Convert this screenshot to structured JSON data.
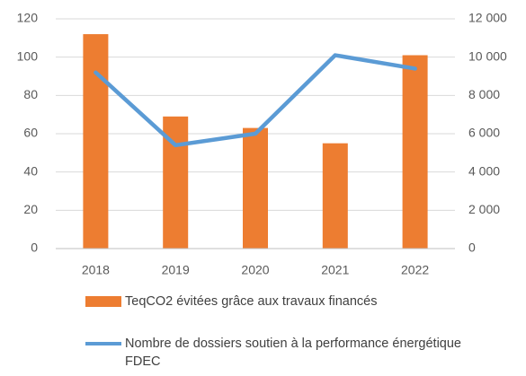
{
  "chart_data": {
    "type": "bar-line",
    "categories": [
      "2018",
      "2019",
      "2020",
      "2021",
      "2022"
    ],
    "series": [
      {
        "name": "TeqCO2 évitées grâce aux travaux financés",
        "type": "bar",
        "color": "#ed7d31",
        "values": [
          112,
          69,
          63,
          55,
          101
        ]
      },
      {
        "name": "Nombre de dossiers soutien à la performance énergétique FDEC",
        "type": "line",
        "axis": "y2",
        "color": "#5b9bd5",
        "values": [
          9200,
          5400,
          6000,
          10100,
          9400
        ]
      }
    ],
    "ylim": [
      0,
      120
    ],
    "yticks": [
      0,
      20,
      40,
      60,
      80,
      100,
      120
    ],
    "y2lim": [
      0,
      12000
    ],
    "y2ticks": [
      0,
      {
        "value": 2000,
        "label": "2 000"
      },
      {
        "value": 4000,
        "label": "4 000"
      },
      {
        "value": 6000,
        "label": "6 000"
      },
      {
        "value": 8000,
        "label": "8 000"
      },
      {
        "value": 10000,
        "label": "10 000"
      },
      {
        "value": 12000,
        "label": "12 000"
      }
    ],
    "grid": true
  }
}
